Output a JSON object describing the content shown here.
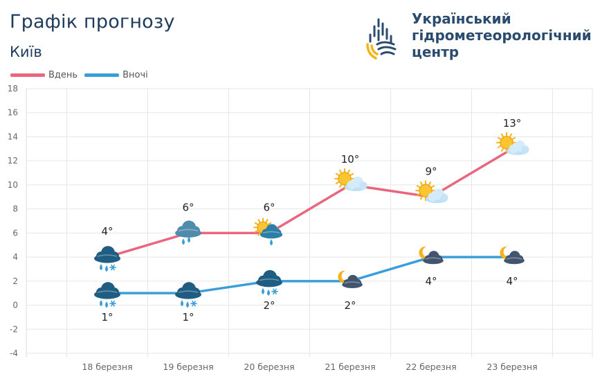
{
  "header": {
    "title": "Графік прогнозу",
    "city": "Київ",
    "org_line1": "Український",
    "org_line2": "гідрометеорологічний",
    "org_line3": "центр"
  },
  "legend": {
    "day_label": "Вдень",
    "night_label": "Вночі"
  },
  "colors": {
    "day": "#e8677f",
    "night": "#3a9fd8",
    "title": "#1f3b5b",
    "grid": "#e6e6e6"
  },
  "chart_data": {
    "type": "line",
    "categories": [
      "18 березня",
      "19 березня",
      "20 березня",
      "21 березня",
      "22 березня",
      "23 березня"
    ],
    "ylim": [
      -4,
      18
    ],
    "yticks": [
      -4,
      -2,
      0,
      2,
      4,
      6,
      8,
      10,
      12,
      14,
      16,
      18
    ],
    "grid": true,
    "legend_position": "top-left",
    "series": [
      {
        "name": "Вдень",
        "values": [
          4,
          6,
          6,
          10,
          9,
          13
        ],
        "labels": [
          "4°",
          "6°",
          "6°",
          "10°",
          "9°",
          "13°"
        ],
        "icons": [
          "cloud-rain-snow-icon",
          "cloud-rain-icon",
          "sun-cloud-rain-icon",
          "sun-cloud-icon",
          "sun-cloud-icon",
          "sun-cloud-icon"
        ]
      },
      {
        "name": "Вночі",
        "values": [
          1,
          1,
          2,
          2,
          4,
          4
        ],
        "labels": [
          "1°",
          "1°",
          "2°",
          "2°",
          "4°",
          "4°"
        ],
        "icons": [
          "cloud-rain-snow-icon",
          "cloud-rain-snow-icon",
          "cloud-rain-snow-icon",
          "moon-cloud-icon",
          "moon-cloud-icon",
          "moon-cloud-icon"
        ]
      }
    ]
  }
}
